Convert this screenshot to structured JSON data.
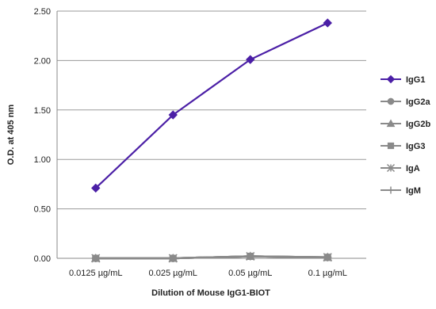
{
  "chart_data": {
    "type": "line",
    "title": "",
    "xlabel": "Dilution of Mouse IgG1-BIOT",
    "ylabel": "O.D. at 405 nm",
    "categories": [
      "0.0125 µg/mL",
      "0.025 µg/mL",
      "0.05 µg/mL",
      "0.1 µg/mL"
    ],
    "ylim": [
      0,
      2.5
    ],
    "yticks": [
      "0.00",
      "0.50",
      "1.00",
      "1.50",
      "2.00",
      "2.50"
    ],
    "grid": true,
    "legend_position": "right",
    "series": [
      {
        "name": "IgG1",
        "values": [
          0.71,
          1.45,
          2.01,
          2.38
        ],
        "color": "#4b1fa6",
        "marker": "diamond"
      },
      {
        "name": "IgG2a",
        "values": [
          0.0,
          0.0,
          0.02,
          0.01
        ],
        "color": "#8a8a8a",
        "marker": "circle"
      },
      {
        "name": "IgG2b",
        "values": [
          0.0,
          0.0,
          0.02,
          0.01
        ],
        "color": "#8a8a8a",
        "marker": "triangle"
      },
      {
        "name": "IgG3",
        "values": [
          0.0,
          0.0,
          0.02,
          0.01
        ],
        "color": "#8a8a8a",
        "marker": "square"
      },
      {
        "name": "IgA",
        "values": [
          0.0,
          0.0,
          0.02,
          0.01
        ],
        "color": "#8a8a8a",
        "marker": "star"
      },
      {
        "name": "IgM",
        "values": [
          0.0,
          0.0,
          0.02,
          0.01
        ],
        "color": "#8a8a8a",
        "marker": "plus"
      }
    ]
  }
}
